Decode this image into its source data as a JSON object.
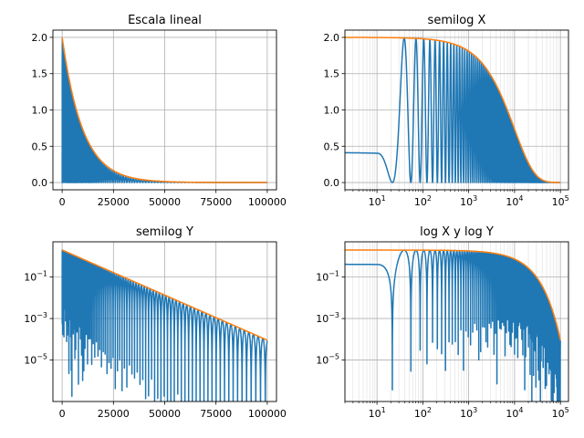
{
  "chart_data": [
    {
      "type": "line",
      "title": "Escala lineal",
      "xscale": "linear",
      "yscale": "linear",
      "xlim": [
        -4500,
        104500
      ],
      "ylim": [
        -0.1,
        2.1
      ],
      "xticks": [
        0,
        25000,
        50000,
        75000,
        100000
      ],
      "xtick_labels": [
        "0",
        "25000",
        "50000",
        "75000",
        "100000"
      ],
      "yticks": [
        0.0,
        0.5,
        1.0,
        1.5,
        2.0
      ],
      "ytick_labels": [
        "0.0",
        "0.5",
        "1.0",
        "1.5",
        "2.0"
      ],
      "grid": true,
      "series": [
        {
          "color": "#1f77b4",
          "curve": "oscillating",
          "x_range": [
            0,
            100000
          ]
        },
        {
          "color": "#ff7f0e",
          "curve": "envelope",
          "x_range": [
            0,
            100000
          ]
        }
      ]
    },
    {
      "type": "line",
      "title": "semilog X",
      "xscale": "log",
      "yscale": "linear",
      "xlim": [
        2,
        150000
      ],
      "ylim": [
        -0.1,
        2.1
      ],
      "xticks": [
        10,
        100,
        1000,
        10000,
        100000
      ],
      "xtick_labels": [
        [
          "10",
          "1"
        ],
        [
          "10",
          "2"
        ],
        [
          "10",
          "3"
        ],
        [
          "10",
          "4"
        ],
        [
          "10",
          "5"
        ]
      ],
      "yticks": [
        0.0,
        0.5,
        1.0,
        1.5,
        2.0
      ],
      "ytick_labels": [
        "0.0",
        "0.5",
        "1.0",
        "1.5",
        "2.0"
      ],
      "grid": true,
      "series": [
        {
          "color": "#1f77b4",
          "curve": "oscillating",
          "x_range": [
            2,
            100000
          ]
        },
        {
          "color": "#ff7f0e",
          "curve": "envelope",
          "x_range": [
            2,
            100000
          ]
        }
      ]
    },
    {
      "type": "line",
      "title": "semilog Y",
      "xscale": "linear",
      "yscale": "log",
      "xlim": [
        -4500,
        104500
      ],
      "ylim": [
        1e-07,
        5
      ],
      "xticks": [
        0,
        25000,
        50000,
        75000,
        100000
      ],
      "xtick_labels": [
        "0",
        "25000",
        "50000",
        "75000",
        "100000"
      ],
      "yticks": [
        0.1,
        0.001,
        1e-05
      ],
      "ytick_labels": [
        [
          "10",
          "−1"
        ],
        [
          "10",
          "−3"
        ],
        [
          "10",
          "−5"
        ]
      ],
      "grid": true,
      "series": [
        {
          "color": "#1f77b4",
          "curve": "oscillating",
          "x_range": [
            0,
            100000
          ]
        },
        {
          "color": "#ff7f0e",
          "curve": "envelope",
          "x_range": [
            0,
            100000
          ]
        }
      ]
    },
    {
      "type": "line",
      "title": "log X y log Y",
      "xscale": "log",
      "yscale": "log",
      "xlim": [
        2,
        150000
      ],
      "ylim": [
        1e-07,
        5
      ],
      "xticks": [
        10,
        100,
        1000,
        10000,
        100000
      ],
      "xtick_labels": [
        [
          "10",
          "1"
        ],
        [
          "10",
          "2"
        ],
        [
          "10",
          "3"
        ],
        [
          "10",
          "4"
        ],
        [
          "10",
          "5"
        ]
      ],
      "yticks": [
        0.1,
        0.001,
        1e-05
      ],
      "ytick_labels": [
        [
          "10",
          "−1"
        ],
        [
          "10",
          "−3"
        ],
        [
          "10",
          "−5"
        ]
      ],
      "grid": true,
      "series": [
        {
          "color": "#1f77b4",
          "curve": "oscillating",
          "x_range": [
            2,
            100000
          ]
        },
        {
          "color": "#ff7f0e",
          "curve": "envelope",
          "x_range": [
            2,
            100000
          ]
        }
      ]
    }
  ]
}
